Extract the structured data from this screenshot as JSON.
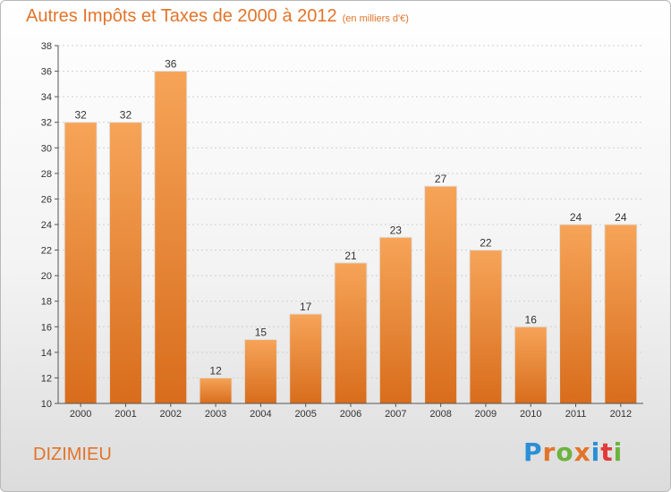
{
  "title": "Autres Impôts et Taxes de 2000 à 2012",
  "unit": "(en milliers d'€)",
  "commune": "DIZIMIEU",
  "logo": {
    "letters": [
      "P",
      "r",
      "o",
      "x",
      "i",
      "t",
      "i"
    ],
    "colors": [
      "#2a8fd6",
      "#e2742a",
      "#6cb33f",
      "#e2742a",
      "#2a8fd6",
      "#e23a3a",
      "#6cb33f"
    ]
  },
  "colors": {
    "accent": "#e2742a",
    "bar_top": "#f6a458",
    "bar_bottom": "#d86d1c"
  },
  "chart_data": {
    "type": "bar",
    "categories": [
      "2000",
      "2001",
      "2002",
      "2003",
      "2004",
      "2005",
      "2006",
      "2007",
      "2008",
      "2009",
      "2010",
      "2011",
      "2012"
    ],
    "values": [
      32,
      32,
      36,
      12,
      15,
      17,
      21,
      23,
      27,
      22,
      16,
      24,
      24
    ],
    "title": "Autres Impôts et Taxes de 2000 à 2012",
    "xlabel": "",
    "ylabel": "",
    "ylim": [
      10,
      38
    ],
    "yticks": [
      10,
      12,
      14,
      16,
      18,
      20,
      22,
      24,
      26,
      28,
      30,
      32,
      34,
      36,
      38
    ],
    "grid": true,
    "data_labels": true
  }
}
